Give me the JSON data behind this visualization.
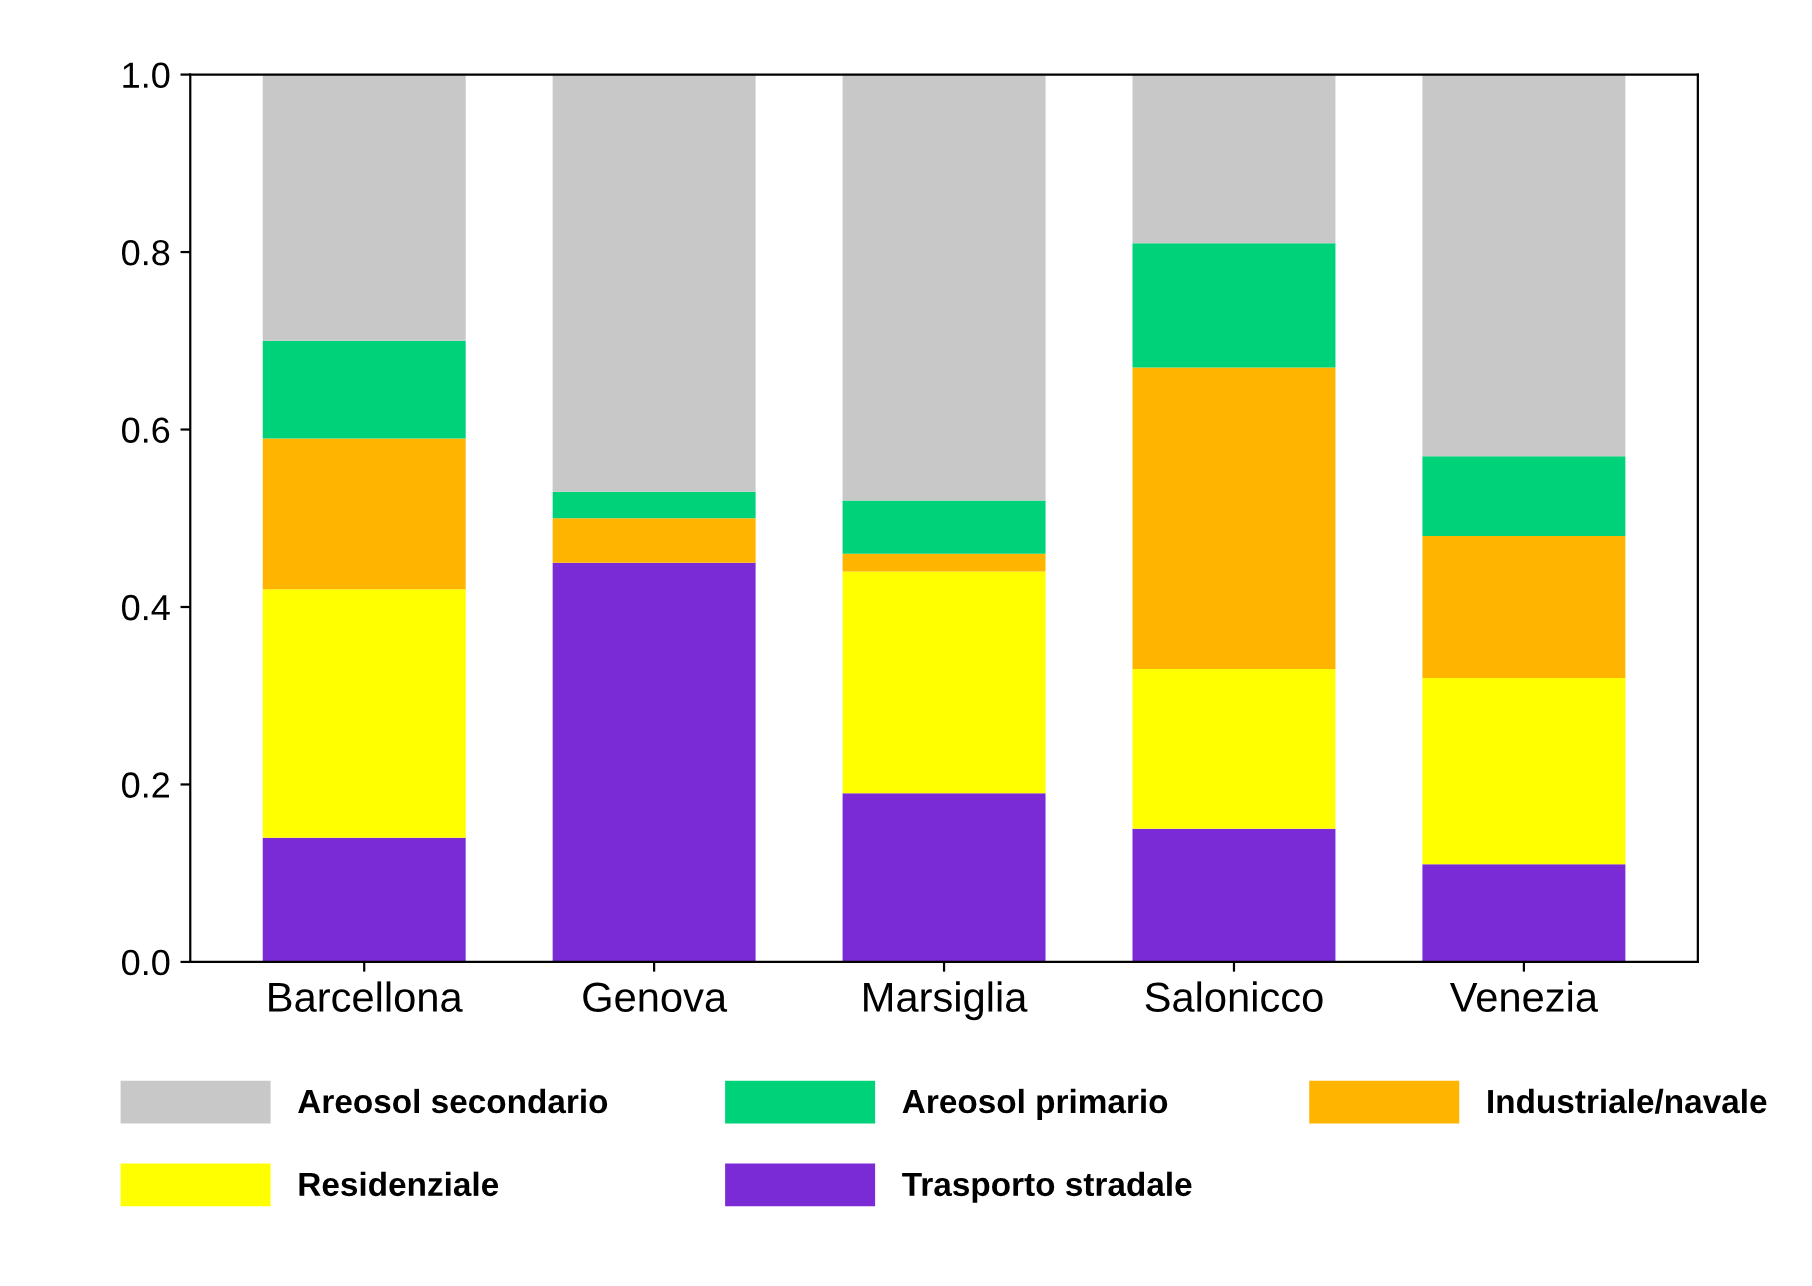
{
  "chart_data": {
    "type": "bar",
    "stacked": true,
    "categories": [
      "Barcellona",
      "Genova",
      "Marsiglia",
      "Salonicco",
      "Venezia"
    ],
    "series": [
      {
        "name": "Trasporto stradale",
        "color": "#7b2bd6",
        "values": [
          0.14,
          0.45,
          0.19,
          0.15,
          0.11
        ]
      },
      {
        "name": "Residenziale",
        "color": "#ffff00",
        "values": [
          0.28,
          0.0,
          0.25,
          0.18,
          0.21
        ]
      },
      {
        "name": "Industriale/navale",
        "color": "#ffb400",
        "values": [
          0.17,
          0.05,
          0.02,
          0.34,
          0.16
        ]
      },
      {
        "name": "Areosol primario",
        "color": "#00d27a",
        "values": [
          0.11,
          0.03,
          0.06,
          0.14,
          0.09
        ]
      },
      {
        "name": "Areosol secondario",
        "color": "#c8c8c8",
        "values": [
          0.3,
          0.47,
          0.48,
          0.19,
          0.43
        ]
      }
    ],
    "ylim": [
      0,
      1.0
    ],
    "yticks": [
      {
        "value": 0,
        "label": "0.0"
      },
      {
        "value": 0.2,
        "label": "0.2"
      },
      {
        "value": 0.4,
        "label": "0.4"
      },
      {
        "value": 0.6,
        "label": "0.6"
      },
      {
        "value": 0.8,
        "label": "0.8"
      },
      {
        "value": 1.0,
        "label": "1.0"
      }
    ],
    "grid": false,
    "legend": "bottom"
  }
}
